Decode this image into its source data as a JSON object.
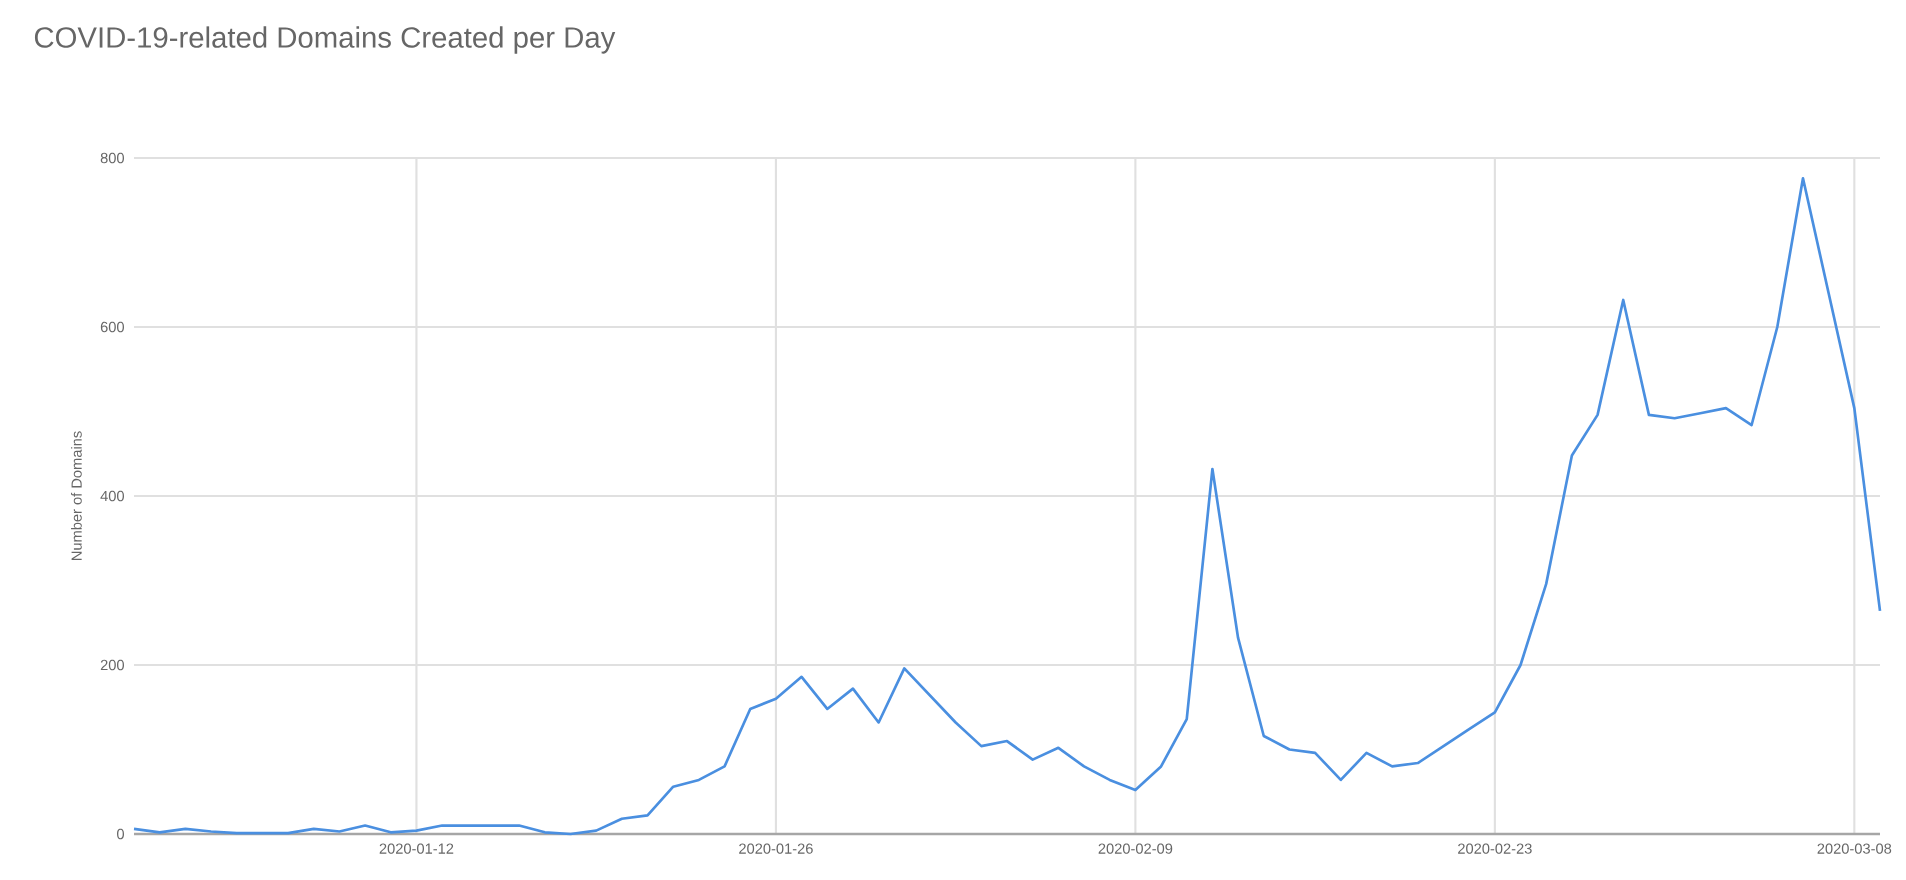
{
  "chart_data": {
    "type": "line",
    "title": "COVID-19-related Domains Created per Day",
    "ylabel": "Number of Domains",
    "x": [
      "2020-01-01",
      "2020-01-02",
      "2020-01-03",
      "2020-01-04",
      "2020-01-05",
      "2020-01-06",
      "2020-01-07",
      "2020-01-08",
      "2020-01-09",
      "2020-01-10",
      "2020-01-11",
      "2020-01-12",
      "2020-01-13",
      "2020-01-14",
      "2020-01-15",
      "2020-01-16",
      "2020-01-17",
      "2020-01-18",
      "2020-01-19",
      "2020-01-20",
      "2020-01-21",
      "2020-01-22",
      "2020-01-23",
      "2020-01-24",
      "2020-01-25",
      "2020-01-26",
      "2020-01-27",
      "2020-01-28",
      "2020-01-29",
      "2020-01-30",
      "2020-01-31",
      "2020-02-01",
      "2020-02-02",
      "2020-02-03",
      "2020-02-04",
      "2020-02-05",
      "2020-02-06",
      "2020-02-07",
      "2020-02-08",
      "2020-02-09",
      "2020-02-10",
      "2020-02-11",
      "2020-02-12",
      "2020-02-13",
      "2020-02-14",
      "2020-02-15",
      "2020-02-16",
      "2020-02-17",
      "2020-02-18",
      "2020-02-19",
      "2020-02-20",
      "2020-02-21",
      "2020-02-22",
      "2020-02-23",
      "2020-02-24",
      "2020-02-25",
      "2020-02-26",
      "2020-02-27",
      "2020-02-28",
      "2020-02-29",
      "2020-03-01",
      "2020-03-02",
      "2020-03-03",
      "2020-03-04",
      "2020-03-05",
      "2020-03-06",
      "2020-03-07",
      "2020-03-08",
      "2020-03-09"
    ],
    "series": [
      {
        "color": "#4a8fe0",
        "values": [
          6,
          2,
          6,
          3,
          1,
          1,
          1,
          6,
          3,
          10,
          2,
          4,
          10,
          10,
          10,
          10,
          2,
          0,
          4,
          18,
          22,
          56,
          64,
          80,
          148,
          160,
          186,
          148,
          172,
          132,
          196,
          164,
          132,
          104,
          110,
          88,
          102,
          80,
          64,
          52,
          80,
          136,
          432,
          232,
          116,
          100,
          96,
          64,
          96,
          80,
          84,
          104,
          124,
          144,
          200,
          296,
          448,
          496,
          632,
          496,
          492,
          498,
          504,
          484,
          600,
          776,
          640,
          504,
          264
        ]
      }
    ],
    "xlim": [
      "2020-01-01",
      "2020-03-09"
    ],
    "ylim": [
      0,
      800
    ],
    "xticks": [
      "2020-01-12",
      "2020-01-26",
      "2020-02-09",
      "2020-02-23",
      "2020-03-08"
    ],
    "yticks": [
      0,
      200,
      400,
      600,
      800
    ],
    "grid": true,
    "marker": "none",
    "line_style": "solid"
  }
}
